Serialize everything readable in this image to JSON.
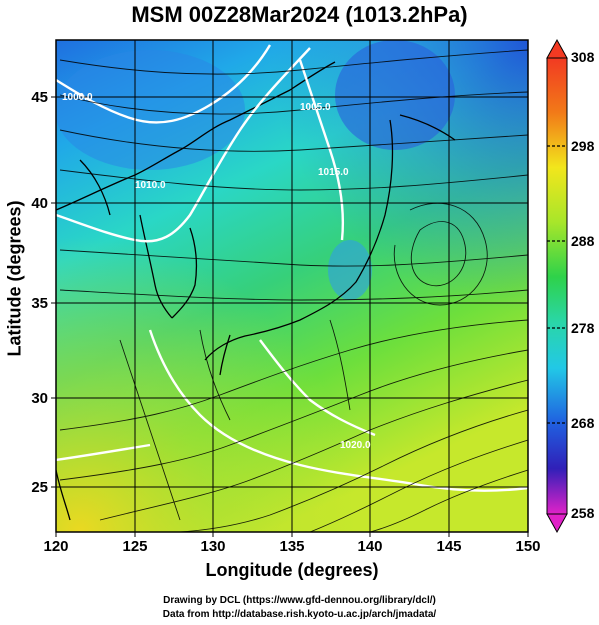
{
  "title": "MSM 00Z28Mar2024 (1013.2hPa)",
  "xlabel": "Longitude (degrees)",
  "ylabel": "Latitude  (degrees)",
  "x_ticks": [
    "120",
    "125",
    "130",
    "135",
    "140",
    "145",
    "150"
  ],
  "y_ticks": [
    "25",
    "30",
    "35",
    "40",
    "45"
  ],
  "colorbar": {
    "labels": [
      "308",
      "298",
      "288",
      "278",
      "268",
      "258"
    ],
    "unit_hint": "temperature (K)"
  },
  "isobar_labels": [
    "1000.0",
    "1010.0",
    "1015.0",
    "1020.0",
    "1005.0"
  ],
  "credits": {
    "line1": "Drawing by DCL (https://www.gfd-dennou.org/library/dcl/)",
    "line2": "Data from http://database.rish.kyoto-u.ac.jp/arch/jmadata/"
  },
  "map": {
    "lon_range": [
      120,
      150
    ],
    "lat_range": [
      22.5,
      47.5
    ],
    "fields": [
      "temperature shading",
      "streamlines",
      "isobars"
    ]
  }
}
